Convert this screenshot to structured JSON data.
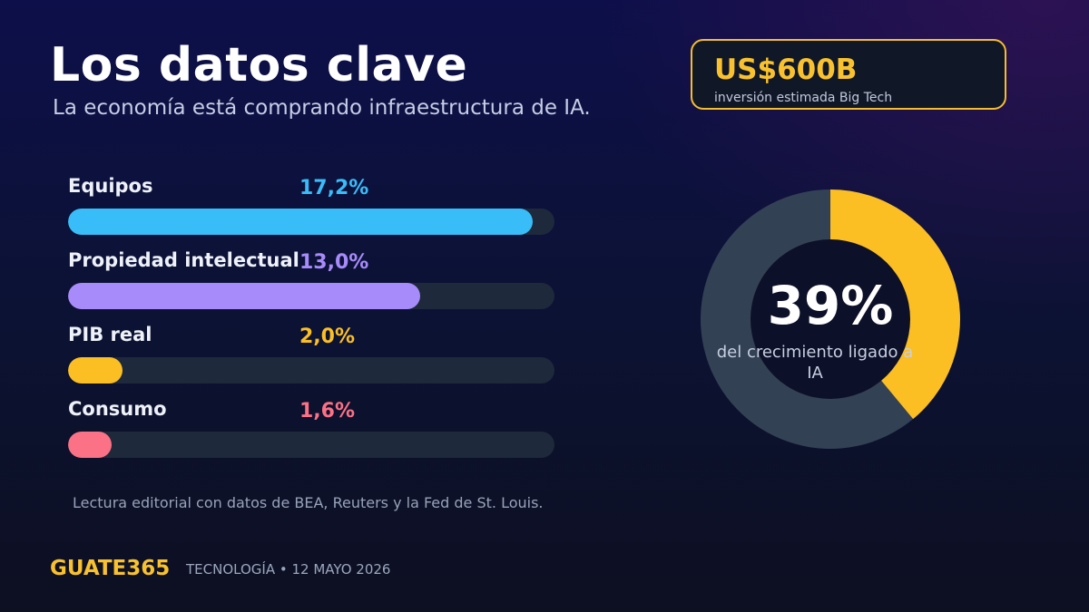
{
  "header": {
    "title": "Los datos clave",
    "subtitle": "La economía está comprando infraestructura de IA."
  },
  "stat_box": {
    "value": "US$600B",
    "caption": "inversión estimada Big Tech"
  },
  "chart_data": [
    {
      "type": "bar",
      "orientation": "horizontal",
      "categories": [
        "Equipos",
        "Propiedad intelectual",
        "PIB real",
        "Consumo"
      ],
      "values": [
        17.2,
        13.0,
        2.0,
        1.6
      ],
      "value_labels": [
        "17,2%",
        "13,0%",
        "2,0%",
        "1,6%"
      ],
      "colors": [
        "#38bdf8",
        "#a78bfa",
        "#fbbf24",
        "#fb7185"
      ],
      "bar_fill_fractions": [
        0.955,
        0.723,
        0.112,
        0.09
      ],
      "track_color": "#1e293b",
      "grid": false
    },
    {
      "type": "pie",
      "style": "donut",
      "values": [
        39,
        61
      ],
      "colors": [
        "#fbbf24",
        "#334155"
      ],
      "center_value": "39%",
      "center_caption": "del crecimiento ligado a IA"
    }
  ],
  "footer": {
    "note": "Lectura editorial con datos de BEA, Reuters y la Fed de St. Louis.",
    "brand": "GUATE365",
    "section_date": "TECNOLOGÍA • 12 MAYO 2026"
  }
}
